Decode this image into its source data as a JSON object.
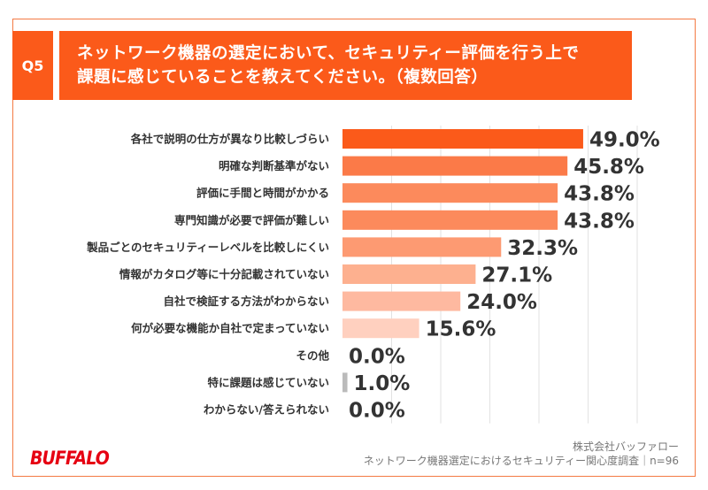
{
  "header": {
    "question_number": "Q5",
    "title_line1": "ネットワーク機器の選定において、セキュリティー評価を行う上で",
    "title_line2": "課題に感じていることを教えてください。（複数回答）"
  },
  "chart_data": {
    "type": "bar",
    "orientation": "horizontal",
    "categories": [
      "各社で説明の仕方が異なり比較しづらい",
      "明確な判断基準がない",
      "評価に手間と時間がかかる",
      "専門知識が必要で評価が難しい",
      "製品ごとのセキュリティーレベルを比較しにくい",
      "情報がカタログ等に十分記載されていない",
      "自社で検証する方法がわからない",
      "何が必要な機能か自社で定まっていない",
      "その他",
      "特に課題は感じていない",
      "わからない/答えられない"
    ],
    "values": [
      49.0,
      45.8,
      43.8,
      43.8,
      32.3,
      27.1,
      24.0,
      15.6,
      0.0,
      1.0,
      0.0
    ],
    "value_labels": [
      "49.0%",
      "45.8%",
      "43.8%",
      "43.8%",
      "32.3%",
      "27.1%",
      "24.0%",
      "15.6%",
      "0.0%",
      "1.0%",
      "0.0%"
    ],
    "colors": [
      "#fb5a1a",
      "#fb7a48",
      "#fc8a5c",
      "#fc8a5c",
      "#fd9a72",
      "#fdb08f",
      "#feb9a0",
      "#ffd0bf",
      "#bbbbbb",
      "#bbbbbb",
      "#bbbbbb"
    ],
    "xlim": [
      0,
      60
    ],
    "grid": true
  },
  "footer": {
    "brand": "BUFFALO",
    "company": "株式会社バッファロー",
    "survey": "ネットワーク機器選定におけるセキュリティー関心度調査｜n=96"
  }
}
